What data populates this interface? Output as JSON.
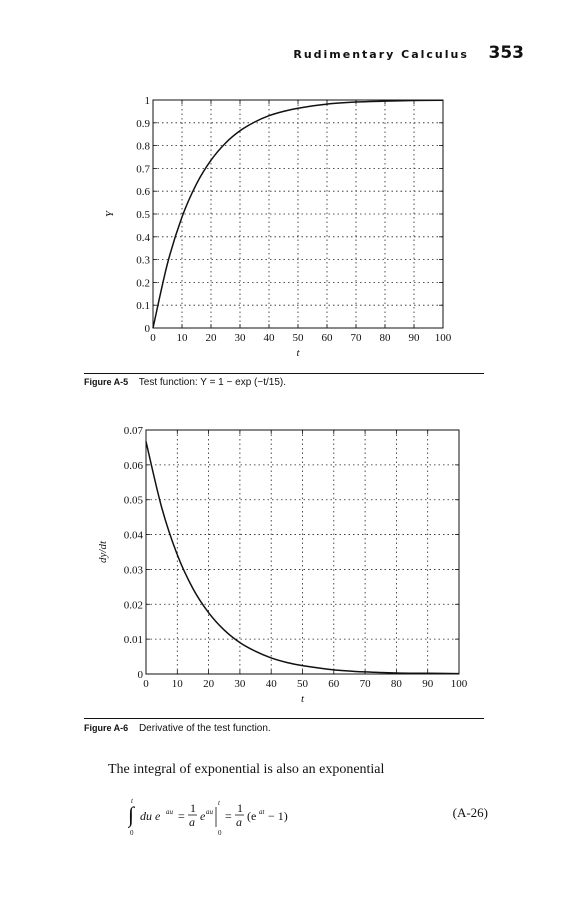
{
  "header": {
    "section": "Rudimentary Calculus",
    "page": "353"
  },
  "figures": [
    {
      "label": "Figure A-5",
      "caption": "Test function: Y = 1 − exp (−t/15)."
    },
    {
      "label": "Figure A-6",
      "caption": "Derivative of the test function."
    }
  ],
  "body_text": "The integral of exponential is also an exponential",
  "equation": {
    "number": "(A-26)"
  },
  "chart_data": [
    {
      "type": "line",
      "xlabel": "t",
      "ylabel": "Y",
      "xlim": [
        0,
        100
      ],
      "ylim": [
        0,
        1
      ],
      "xticks": [
        "0",
        "10",
        "20",
        "30",
        "40",
        "50",
        "60",
        "70",
        "80",
        "90",
        "100"
      ],
      "yticks": [
        "0",
        "0.1",
        "0.2",
        "0.3",
        "0.4",
        "0.5",
        "0.6",
        "0.7",
        "0.8",
        "0.9",
        "1"
      ],
      "grid": true,
      "x": [
        0,
        5,
        10,
        15,
        20,
        25,
        30,
        35,
        40,
        45,
        50,
        60,
        70,
        80,
        90,
        100
      ],
      "y": [
        0,
        0.283,
        0.487,
        0.632,
        0.736,
        0.811,
        0.865,
        0.903,
        0.931,
        0.95,
        0.964,
        0.982,
        0.991,
        0.995,
        0.998,
        0.999
      ]
    },
    {
      "type": "line",
      "xlabel": "t",
      "ylabel": "dy/dt",
      "xlim": [
        0,
        100
      ],
      "ylim": [
        0,
        0.07
      ],
      "xticks": [
        "0",
        "10",
        "20",
        "30",
        "40",
        "50",
        "60",
        "70",
        "80",
        "90",
        "100"
      ],
      "yticks": [
        "0",
        "0.01",
        "0.02",
        "0.03",
        "0.04",
        "0.05",
        "0.06",
        "0.07"
      ],
      "grid": true,
      "x": [
        0,
        5,
        10,
        15,
        20,
        25,
        30,
        35,
        40,
        45,
        50,
        60,
        70,
        80,
        90,
        100
      ],
      "y": [
        0.0667,
        0.0478,
        0.0342,
        0.0245,
        0.0176,
        0.0126,
        0.009,
        0.0065,
        0.0046,
        0.0033,
        0.0024,
        0.0012,
        0.0006,
        0.0003,
        0.0002,
        0.0001
      ]
    }
  ]
}
